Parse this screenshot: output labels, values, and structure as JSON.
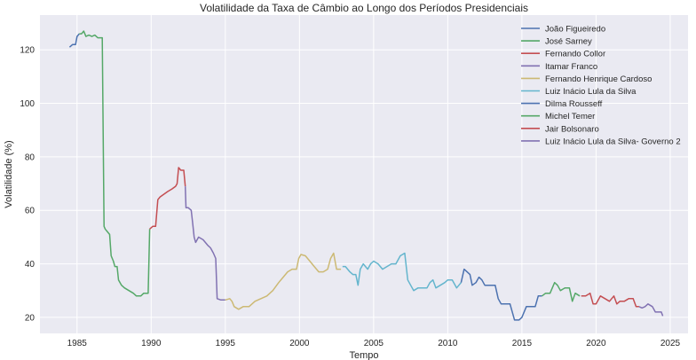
{
  "chart_data": {
    "type": "line",
    "title": "Volatilidade da Taxa de Câmbio ao Longo dos Períodos Presidenciais",
    "xlabel": "Tempo",
    "ylabel": "Volatilidade (%)",
    "xlim": [
      1982.5,
      2026.2
    ],
    "ylim": [
      14,
      133
    ],
    "xticks": [
      1985,
      1990,
      1995,
      2000,
      2005,
      2010,
      2015,
      2020,
      2025
    ],
    "yticks": [
      20,
      40,
      60,
      80,
      100,
      120
    ],
    "grid": true,
    "legend_position": "top-right",
    "series": [
      {
        "name": "João Figueiredo",
        "color": "#4c72b0",
        "points": [
          [
            1984.5,
            121
          ],
          [
            1984.7,
            122
          ],
          [
            1984.9,
            122
          ],
          [
            1985.0,
            125
          ],
          [
            1985.15,
            126
          ]
        ]
      },
      {
        "name": "José Sarney",
        "color": "#55a868",
        "points": [
          [
            1985.15,
            126
          ],
          [
            1985.3,
            126
          ],
          [
            1985.45,
            127
          ],
          [
            1985.6,
            125
          ],
          [
            1985.8,
            125.5
          ],
          [
            1986.0,
            125
          ],
          [
            1986.2,
            125.5
          ],
          [
            1986.4,
            124.5
          ],
          [
            1986.7,
            124.5
          ],
          [
            1986.82,
            54
          ],
          [
            1986.9,
            53
          ],
          [
            1987.05,
            52
          ],
          [
            1987.2,
            51
          ],
          [
            1987.3,
            43
          ],
          [
            1987.45,
            41
          ],
          [
            1987.55,
            39
          ],
          [
            1987.7,
            39
          ],
          [
            1987.8,
            34
          ],
          [
            1988.0,
            32
          ],
          [
            1988.2,
            31
          ],
          [
            1988.5,
            30
          ],
          [
            1988.8,
            29
          ],
          [
            1989.0,
            28
          ],
          [
            1989.3,
            28
          ],
          [
            1989.5,
            29
          ],
          [
            1989.8,
            29
          ],
          [
            1989.9,
            53
          ]
        ]
      },
      {
        "name": "Fernando Collor",
        "color": "#c44e52",
        "points": [
          [
            1989.9,
            53
          ],
          [
            1990.1,
            54
          ],
          [
            1990.3,
            54
          ],
          [
            1990.45,
            64
          ],
          [
            1990.6,
            65
          ],
          [
            1990.85,
            66
          ],
          [
            1991.1,
            67
          ],
          [
            1991.4,
            68
          ],
          [
            1991.65,
            69
          ],
          [
            1991.75,
            70
          ],
          [
            1991.85,
            76
          ],
          [
            1992.0,
            75
          ],
          [
            1992.2,
            75
          ],
          [
            1992.3,
            69
          ]
        ]
      },
      {
        "name": "Itamar Franco",
        "color": "#8172b2",
        "points": [
          [
            1992.3,
            69
          ],
          [
            1992.35,
            61
          ],
          [
            1992.5,
            61
          ],
          [
            1992.7,
            60
          ],
          [
            1992.8,
            55
          ],
          [
            1992.9,
            50
          ],
          [
            1993.0,
            48
          ],
          [
            1993.2,
            50
          ],
          [
            1993.5,
            49
          ],
          [
            1993.8,
            47
          ],
          [
            1994.0,
            46
          ],
          [
            1994.2,
            44
          ],
          [
            1994.35,
            42
          ],
          [
            1994.45,
            27
          ],
          [
            1994.7,
            26.5
          ],
          [
            1995.0,
            26.5
          ]
        ]
      },
      {
        "name": "Fernando Henrique Cardoso",
        "color": "#ccb974",
        "points": [
          [
            1995.0,
            26.5
          ],
          [
            1995.3,
            27
          ],
          [
            1995.45,
            26
          ],
          [
            1995.6,
            24
          ],
          [
            1995.9,
            23
          ],
          [
            1996.2,
            24
          ],
          [
            1996.6,
            24
          ],
          [
            1997.0,
            26
          ],
          [
            1997.4,
            27
          ],
          [
            1997.8,
            28
          ],
          [
            1998.2,
            30
          ],
          [
            1998.6,
            33
          ],
          [
            1998.9,
            35
          ],
          [
            1999.2,
            37
          ],
          [
            1999.5,
            38
          ],
          [
            1999.8,
            38
          ],
          [
            1999.95,
            42
          ],
          [
            2000.1,
            43.5
          ],
          [
            2000.4,
            43
          ],
          [
            2000.7,
            41
          ],
          [
            2001.0,
            39
          ],
          [
            2001.3,
            37
          ],
          [
            2001.6,
            37
          ],
          [
            2001.9,
            38
          ],
          [
            2002.1,
            42
          ],
          [
            2002.3,
            44
          ],
          [
            2002.5,
            38
          ],
          [
            2002.8,
            38
          ]
        ]
      },
      {
        "name": "Luiz Inácio Lula da Silva",
        "color": "#64b5cd",
        "points": [
          [
            2002.9,
            39
          ],
          [
            2003.1,
            39
          ],
          [
            2003.4,
            37
          ],
          [
            2003.6,
            36
          ],
          [
            2003.8,
            36
          ],
          [
            2003.95,
            32
          ],
          [
            2004.1,
            38
          ],
          [
            2004.3,
            40
          ],
          [
            2004.6,
            38
          ],
          [
            2004.8,
            40
          ],
          [
            2005.0,
            41
          ],
          [
            2005.3,
            40
          ],
          [
            2005.6,
            38
          ],
          [
            2005.9,
            39
          ],
          [
            2006.2,
            40
          ],
          [
            2006.5,
            40
          ],
          [
            2006.8,
            43
          ],
          [
            2007.1,
            44
          ],
          [
            2007.3,
            34
          ],
          [
            2007.5,
            32
          ],
          [
            2007.7,
            30
          ],
          [
            2008.0,
            31
          ],
          [
            2008.3,
            31
          ],
          [
            2008.6,
            31
          ],
          [
            2008.8,
            33
          ],
          [
            2009.0,
            34
          ],
          [
            2009.2,
            31
          ],
          [
            2009.5,
            32
          ],
          [
            2009.8,
            33
          ],
          [
            2010.0,
            34
          ],
          [
            2010.3,
            34
          ],
          [
            2010.6,
            31
          ],
          [
            2010.9,
            33
          ]
        ]
      },
      {
        "name": "Dilma Rousseff",
        "color": "#4c72b0",
        "points": [
          [
            2010.9,
            33
          ],
          [
            2011.1,
            38
          ],
          [
            2011.3,
            37
          ],
          [
            2011.5,
            36
          ],
          [
            2011.65,
            32
          ],
          [
            2011.9,
            33
          ],
          [
            2012.1,
            35
          ],
          [
            2012.3,
            34
          ],
          [
            2012.5,
            32
          ],
          [
            2012.8,
            32
          ],
          [
            2013.0,
            32
          ],
          [
            2013.2,
            32
          ],
          [
            2013.4,
            27
          ],
          [
            2013.6,
            25
          ],
          [
            2013.9,
            25
          ],
          [
            2014.2,
            25
          ],
          [
            2014.5,
            19
          ],
          [
            2014.8,
            19
          ],
          [
            2015.0,
            20
          ],
          [
            2015.3,
            24
          ],
          [
            2015.6,
            24
          ],
          [
            2015.9,
            24
          ],
          [
            2016.1,
            28
          ],
          [
            2016.35,
            28
          ]
        ]
      },
      {
        "name": "Michel Temer",
        "color": "#55a868",
        "points": [
          [
            2016.35,
            28
          ],
          [
            2016.6,
            29
          ],
          [
            2016.9,
            29
          ],
          [
            2017.2,
            33
          ],
          [
            2017.4,
            32
          ],
          [
            2017.6,
            30
          ],
          [
            2017.9,
            31
          ],
          [
            2018.2,
            31
          ],
          [
            2018.4,
            26
          ],
          [
            2018.6,
            29
          ],
          [
            2018.9,
            28
          ]
        ]
      },
      {
        "name": "Jair Bolsonaro",
        "color": "#c44e52",
        "points": [
          [
            2019.0,
            28
          ],
          [
            2019.3,
            28
          ],
          [
            2019.6,
            29
          ],
          [
            2019.8,
            25
          ],
          [
            2020.0,
            25
          ],
          [
            2020.3,
            28
          ],
          [
            2020.6,
            27
          ],
          [
            2020.9,
            26
          ],
          [
            2021.2,
            28
          ],
          [
            2021.4,
            25
          ],
          [
            2021.6,
            26
          ],
          [
            2021.9,
            26
          ],
          [
            2022.2,
            27
          ],
          [
            2022.5,
            27
          ],
          [
            2022.7,
            24
          ],
          [
            2022.9,
            24
          ]
        ]
      },
      {
        "name": "Luiz Inácio Lula da Silva- Governo 2",
        "color": "#8172b2",
        "points": [
          [
            2022.9,
            24
          ],
          [
            2023.1,
            23.5
          ],
          [
            2023.3,
            24
          ],
          [
            2023.5,
            25
          ],
          [
            2023.8,
            24
          ],
          [
            2024.0,
            22
          ],
          [
            2024.2,
            22
          ],
          [
            2024.4,
            22
          ],
          [
            2024.5,
            20.5
          ]
        ]
      }
    ]
  }
}
